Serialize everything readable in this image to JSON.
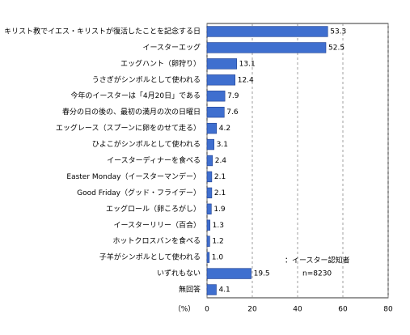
{
  "chart_data": {
    "type": "bar",
    "orientation": "horizontal",
    "categories": [
      "キリスト教でイエス・キリストが復活したことを記念する日",
      "イースターエッグ",
      "エッグハント（卵狩り）",
      "うさぎがシンボルとして使われる",
      "今年のイースターは「4月20日」である",
      "春分の日の後の、最初の満月の次の日曜日",
      "エッグレース（スプーンに卵をのせて走る）",
      "ひよこがシンボルとして使われる",
      "イースターディナーを食べる",
      "Easter Monday（イースターマンデー）",
      "Good Friday（グッド・フライデー）",
      "エッグロール（卵ころがし）",
      "イースターリリー（百合）",
      "ホットクロスバンを食べる",
      "子羊がシンボルとして使われる",
      "いずれもない",
      "無回答"
    ],
    "values": [
      53.3,
      52.5,
      13.1,
      12.4,
      7.9,
      7.6,
      4.2,
      3.1,
      2.4,
      2.1,
      2.1,
      1.9,
      1.3,
      1.2,
      1.0,
      19.5,
      4.1
    ],
    "value_labels": [
      "53.3",
      "52.5",
      "13.1",
      "12.4",
      "7.9",
      "7.6",
      "4.2",
      "3.1",
      "2.4",
      "2.1",
      "2.1",
      "1.9",
      "1.3",
      "1.2",
      "1.0",
      "19.5",
      "4.1"
    ],
    "color": "#3f6fcf",
    "xlim": [
      0,
      80
    ],
    "xticks": [
      0,
      20,
      40,
      60,
      80
    ],
    "grid": true,
    "x_label": "（%）",
    "annotations": [
      "：イースター認知者",
      "n=8230"
    ]
  }
}
